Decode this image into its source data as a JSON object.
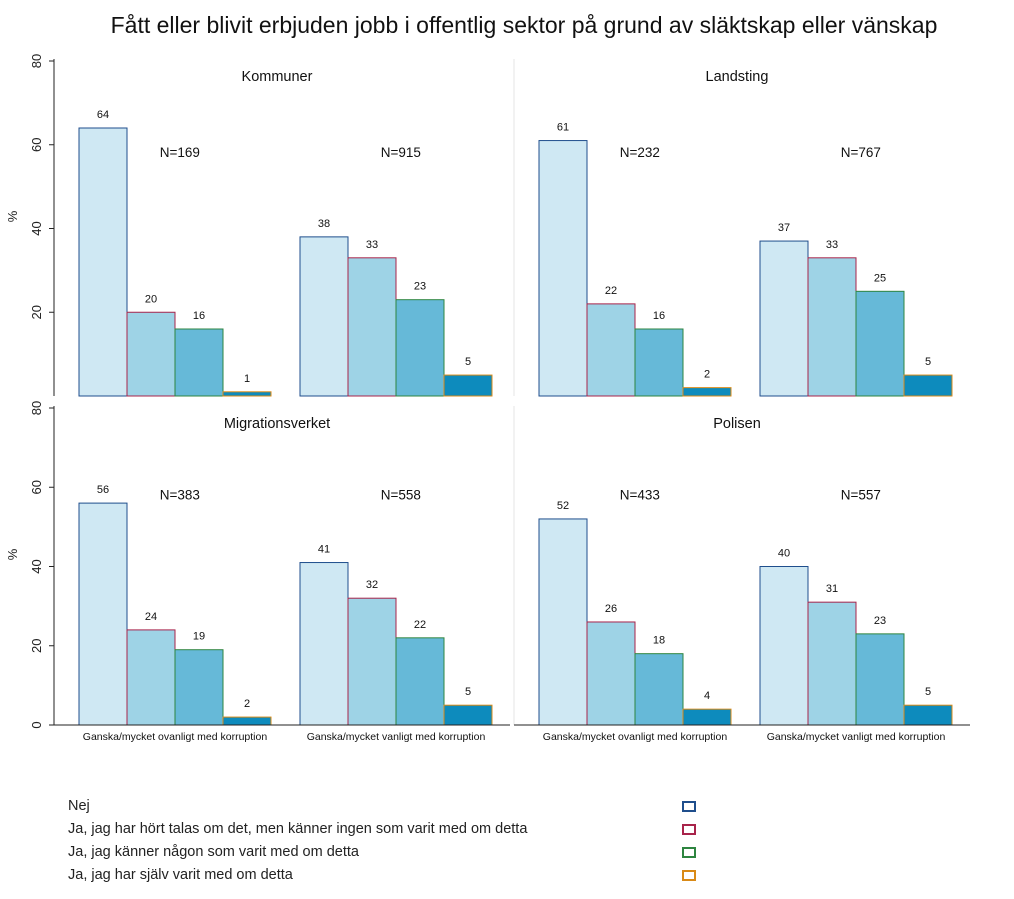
{
  "chart_data": {
    "type": "bar",
    "title": "Fått eller blivit erbjuden jobb i offentlig sektor på grund av släktskap eller vänskap",
    "ylabel": "%",
    "ylim": [
      0,
      80
    ],
    "yticks": [
      0,
      20,
      40,
      60,
      80
    ],
    "categories": [
      "Ganska/mycket ovanligt med korruption",
      "Ganska/mycket vanligt med korruption"
    ],
    "series_names": [
      "Nej",
      "Ja, jag har hört talas om det, men känner ingen som varit med om detta",
      "Ja, jag känner någon som varit med om detta",
      "Ja, jag har själv varit med om detta"
    ],
    "fill_colors": [
      "#cfe8f3",
      "#9ed3e6",
      "#66b9d8",
      "#0d8bbd"
    ],
    "border_colors": [
      "#1f4e8c",
      "#a8234a",
      "#2e8540",
      "#d98a17"
    ],
    "panels": [
      {
        "name": "Kommuner",
        "n_labels": [
          "N=169",
          "N=915"
        ],
        "values": [
          [
            64,
            20,
            16,
            1
          ],
          [
            38,
            33,
            23,
            5
          ]
        ]
      },
      {
        "name": "Landsting",
        "n_labels": [
          "N=232",
          "N=767"
        ],
        "values": [
          [
            61,
            22,
            16,
            2
          ],
          [
            37,
            33,
            25,
            5
          ]
        ]
      },
      {
        "name": "Migrationsverket",
        "n_labels": [
          "N=383",
          "N=558"
        ],
        "values": [
          [
            56,
            24,
            19,
            2
          ],
          [
            41,
            32,
            22,
            5
          ]
        ]
      },
      {
        "name": "Polisen",
        "n_labels": [
          "N=433",
          "N=557"
        ],
        "values": [
          [
            52,
            26,
            18,
            4
          ],
          [
            40,
            31,
            23,
            5
          ]
        ]
      }
    ],
    "legend_position": "bottom"
  }
}
